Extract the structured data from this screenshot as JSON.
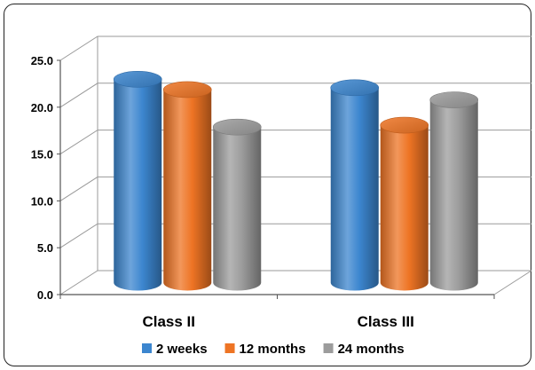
{
  "chart_data": {
    "type": "bar",
    "title": "",
    "xlabel": "",
    "ylabel": "",
    "categories": [
      "Class II",
      "Class III"
    ],
    "series": [
      {
        "name": "2 weeks",
        "values": [
          21.7,
          20.8
        ],
        "color": "#3c86cf"
      },
      {
        "name": "12 months",
        "values": [
          20.6,
          16.8
        ],
        "color": "#ee7424"
      },
      {
        "name": "24 months",
        "values": [
          16.6,
          19.5
        ],
        "color": "#9c9c9c"
      }
    ],
    "ylim": [
      0,
      25
    ],
    "yticks": [
      "0.0",
      "5.0",
      "10.0",
      "15.0",
      "20.0",
      "25.0"
    ],
    "grid": true,
    "legend_position": "bottom",
    "style": "3d-cylinder"
  }
}
